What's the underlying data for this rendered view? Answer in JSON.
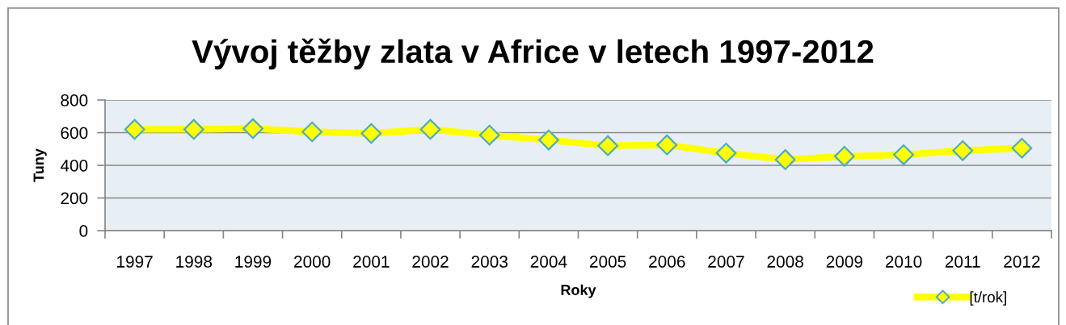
{
  "chart_data": {
    "type": "line",
    "title": "Vývoj těžby zlata v Africe v letech 1997-2012",
    "xlabel": "Roky",
    "ylabel": "Tuny",
    "categories": [
      "1997",
      "1998",
      "1999",
      "2000",
      "2001",
      "2002",
      "2003",
      "2004",
      "2005",
      "2006",
      "2007",
      "2008",
      "2009",
      "2010",
      "2011",
      "2012"
    ],
    "series": [
      {
        "name": "[t/rok]",
        "color": "#ffff00",
        "values": [
          620,
          620,
          625,
          605,
          595,
          620,
          585,
          555,
          520,
          525,
          475,
          435,
          455,
          465,
          490,
          505
        ]
      }
    ],
    "ylim": [
      0,
      800
    ],
    "yticks": [
      0,
      200,
      400,
      600,
      800
    ],
    "grid": "y",
    "legend": "bottom right",
    "marker": "diamond",
    "line_style": "solid"
  }
}
